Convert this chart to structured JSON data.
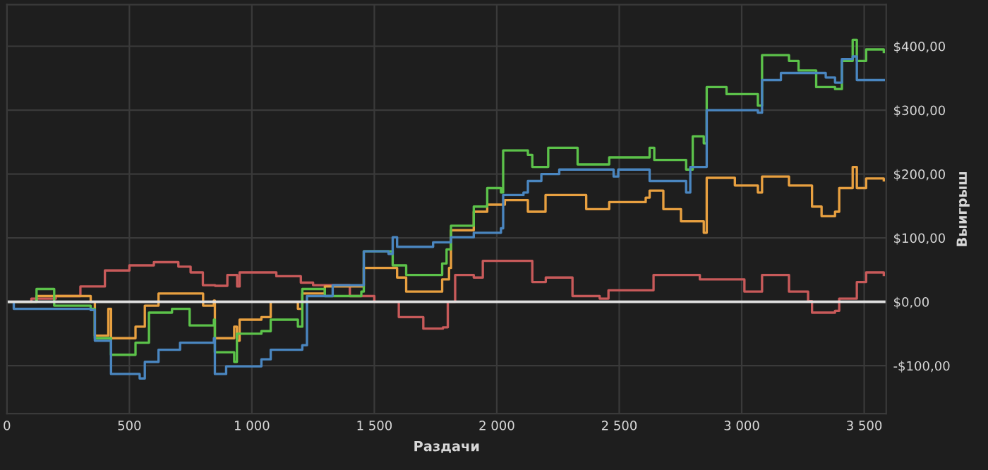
{
  "chart_data": {
    "type": "step",
    "xlabel": "Раздачи",
    "ylabel": "Выигрыш",
    "xlim": [
      0,
      3590
    ],
    "ylim": [
      -175,
      465
    ],
    "xticks": [
      0,
      {
        "value": 500,
        "label": "500"
      },
      {
        "value": 1000,
        "label": "1 000"
      },
      {
        "value": 1500,
        "label": "1 500"
      },
      {
        "value": 2000,
        "label": "2 000"
      },
      {
        "value": 2500,
        "label": "2 500"
      },
      {
        "value": 3000,
        "label": "3 000"
      },
      {
        "value": 3500,
        "label": "3 500"
      }
    ],
    "yticks": [
      {
        "value": -100,
        "label": "-$100,00"
      },
      {
        "value": 0,
        "label": "$0,00"
      },
      {
        "value": 100,
        "label": "$100,00"
      },
      {
        "value": 200,
        "label": "$200,00"
      },
      {
        "value": 300,
        "label": "$300,00"
      },
      {
        "value": 400,
        "label": "$400,00"
      }
    ],
    "grid": true,
    "line_style": "solid",
    "ref_lines": [
      {
        "axis": "y",
        "value": 0,
        "color": "#e0e0e0"
      }
    ],
    "series": [
      {
        "color": "#c85a5a",
        "x": [
          0,
          100,
          200,
          300,
          400,
          500,
          600,
          700,
          750,
          800,
          850,
          900,
          940,
          950,
          1100,
          1200,
          1250,
          1400,
          1500,
          1600,
          1700,
          1780,
          1800,
          1830,
          1906,
          1943,
          2016,
          2127,
          2145,
          2200,
          2309,
          2420,
          2456,
          2640,
          2829,
          3011,
          3083,
          3193,
          3271,
          3287,
          3381,
          3398,
          3470,
          3508,
          3580
        ],
        "values": [
          0,
          5,
          9,
          24,
          49,
          57,
          62,
          55,
          46,
          26,
          25,
          42,
          24,
          46,
          40,
          30,
          26,
          9,
          0,
          -24,
          -42,
          -40,
          0,
          42,
          38,
          64,
          64,
          64,
          31,
          38,
          9,
          5,
          18,
          42,
          35,
          16,
          42,
          16,
          1,
          -17,
          -14,
          5,
          31,
          46,
          42
        ]
      },
      {
        "color": "#e8a040",
        "x": [
          0,
          121,
          342,
          359,
          414,
          425,
          525,
          563,
          619,
          707,
          801,
          845,
          849,
          928,
          939,
          950,
          1039,
          1077,
          1188,
          1206,
          1298,
          1447,
          1457,
          1593,
          1630,
          1777,
          1805,
          1813,
          1906,
          1961,
          2033,
          2127,
          2199,
          2365,
          2459,
          2608,
          2624,
          2680,
          2752,
          2845,
          2857,
          2972,
          3066,
          3083,
          3193,
          3287,
          3326,
          3381,
          3398,
          3453,
          3470,
          3508,
          3580
        ],
        "values": [
          0,
          9,
          0,
          -53,
          -11,
          -57,
          -39,
          -6,
          13,
          13,
          -6,
          2,
          -57,
          -39,
          -61,
          -28,
          -24,
          0,
          -11,
          13,
          24,
          24,
          53,
          38,
          16,
          35,
          53,
          112,
          141,
          152,
          159,
          141,
          167,
          145,
          156,
          163,
          174,
          145,
          126,
          108,
          194,
          182,
          171,
          196,
          182,
          149,
          134,
          141,
          178,
          211,
          178,
          193,
          190
        ]
      },
      {
        "color": "#5cc24a",
        "x": [
          0,
          121,
          193,
          342,
          359,
          425,
          525,
          580,
          674,
          746,
          845,
          849,
          928,
          939,
          1039,
          1077,
          1188,
          1206,
          1298,
          1447,
          1457,
          1575,
          1630,
          1777,
          1795,
          1813,
          1906,
          1961,
          2017,
          2026,
          2127,
          2145,
          2210,
          2330,
          2459,
          2624,
          2643,
          2773,
          2800,
          2845,
          2857,
          2938,
          3066,
          3083,
          3193,
          3232,
          3304,
          3381,
          3409,
          3453,
          3470,
          3508,
          3580
        ],
        "values": [
          0,
          20,
          -6,
          -11,
          -57,
          -83,
          -64,
          -17,
          -11,
          -37,
          -28,
          -79,
          -94,
          -50,
          -46,
          -28,
          -39,
          20,
          9,
          16,
          79,
          57,
          42,
          60,
          82,
          119,
          149,
          178,
          171,
          237,
          230,
          211,
          241,
          215,
          226,
          241,
          222,
          207,
          259,
          248,
          336,
          325,
          307,
          386,
          377,
          362,
          336,
          333,
          377,
          410,
          377,
          395,
          391
        ]
      },
      {
        "color": "#4a86c0",
        "x": [
          0,
          28,
          342,
          359,
          425,
          542,
          563,
          619,
          707,
          845,
          849,
          895,
          1039,
          1077,
          1206,
          1225,
          1330,
          1447,
          1457,
          1558,
          1575,
          1593,
          1740,
          1813,
          1906,
          2017,
          2026,
          2109,
          2127,
          2182,
          2255,
          2477,
          2496,
          2624,
          2773,
          2790,
          2857,
          3066,
          3083,
          3160,
          3343,
          3381,
          3409,
          3453,
          3470,
          3580
        ],
        "values": [
          0,
          -11,
          -13,
          -61,
          -113,
          -120,
          -94,
          -75,
          -64,
          -57,
          -113,
          -101,
          -90,
          -75,
          -68,
          9,
          26,
          26,
          79,
          75,
          101,
          86,
          93,
          101,
          108,
          115,
          167,
          171,
          189,
          200,
          207,
          196,
          207,
          189,
          171,
          211,
          300,
          296,
          347,
          358,
          351,
          343,
          380,
          384,
          347,
          347
        ]
      }
    ]
  }
}
